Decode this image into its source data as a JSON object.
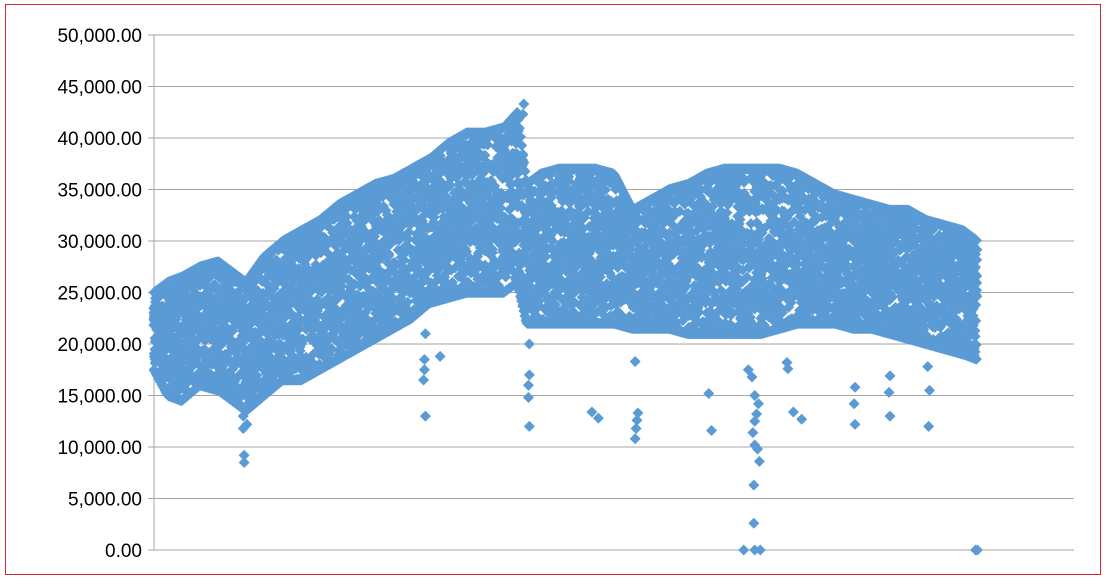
{
  "chart_data": {
    "type": "scatter",
    "title": "",
    "xlabel": "",
    "ylabel": "",
    "ylim": [
      0,
      50000
    ],
    "y_ticks": [
      0,
      5000,
      10000,
      15000,
      20000,
      25000,
      30000,
      35000,
      40000,
      45000,
      50000
    ],
    "y_tick_labels": [
      "0.00",
      "5,000.00",
      "10,000.00",
      "15,000.00",
      "20,000.00",
      "25,000.00",
      "30,000.00",
      "35,000.00",
      "40,000.00",
      "45,000.00",
      "50,000.00"
    ],
    "x_axis_labels_visible": false,
    "xlim": [
      0,
      100
    ],
    "grid": "horizontal",
    "legend": "none",
    "marker": "diamond",
    "series_color": "#5b9bd5",
    "gridline_color": "#a6a6a6",
    "border_color": "#d9262a",
    "envelope": {
      "x": [
        0,
        1.5,
        3,
        5,
        7,
        10,
        12,
        14,
        16,
        18,
        20,
        22,
        24,
        26,
        28,
        30,
        32,
        34,
        36,
        38,
        39.5,
        40.5,
        42,
        44,
        46,
        48,
        50,
        52,
        54,
        56,
        58,
        60,
        62,
        64,
        66,
        68,
        70,
        72,
        74,
        76,
        78,
        80,
        82,
        84,
        86,
        88,
        89.5
      ],
      "y_low": [
        17500,
        15000,
        14500,
        16000,
        15500,
        13500,
        15000,
        16500,
        16500,
        17500,
        18500,
        19500,
        20500,
        21500,
        22500,
        24000,
        24500,
        25000,
        25000,
        25000,
        26000,
        22000,
        22000,
        22000,
        22000,
        22000,
        22000,
        21500,
        21500,
        21500,
        21000,
        21000,
        21000,
        21000,
        21000,
        21500,
        22000,
        22000,
        22000,
        21500,
        21500,
        21000,
        20500,
        20000,
        19500,
        19000,
        18500
      ],
      "y_high": [
        25000,
        26000,
        26500,
        27500,
        28000,
        26000,
        28500,
        30000,
        31000,
        32000,
        33500,
        34500,
        35500,
        36000,
        37000,
        38000,
        39500,
        40500,
        40500,
        41000,
        42500,
        35500,
        36500,
        37000,
        37000,
        37000,
        36500,
        33000,
        34000,
        35000,
        35500,
        36500,
        37000,
        37000,
        37000,
        37000,
        36500,
        35500,
        34500,
        34000,
        33500,
        33000,
        33000,
        32000,
        31500,
        31000,
        30000
      ]
    },
    "outliers": [
      {
        "x": 9.7,
        "y": 13000
      },
      {
        "x": 9.7,
        "y": 11800
      },
      {
        "x": 10.1,
        "y": 12200
      },
      {
        "x": 9.8,
        "y": 9200
      },
      {
        "x": 9.8,
        "y": 8500
      },
      {
        "x": 29.5,
        "y": 21000
      },
      {
        "x": 29.4,
        "y": 18500
      },
      {
        "x": 29.4,
        "y": 17500
      },
      {
        "x": 29.3,
        "y": 16500
      },
      {
        "x": 29.5,
        "y": 13000
      },
      {
        "x": 31.1,
        "y": 18800
      },
      {
        "x": 40.2,
        "y": 43300
      },
      {
        "x": 40.1,
        "y": 42300
      },
      {
        "x": 40.8,
        "y": 20000
      },
      {
        "x": 40.8,
        "y": 17000
      },
      {
        "x": 40.7,
        "y": 16000
      },
      {
        "x": 40.7,
        "y": 14800
      },
      {
        "x": 40.8,
        "y": 12000
      },
      {
        "x": 47.6,
        "y": 13400
      },
      {
        "x": 48.3,
        "y": 12800
      },
      {
        "x": 52.3,
        "y": 18300
      },
      {
        "x": 52.6,
        "y": 13300
      },
      {
        "x": 52.5,
        "y": 12600
      },
      {
        "x": 52.4,
        "y": 11800
      },
      {
        "x": 52.3,
        "y": 10800
      },
      {
        "x": 60.3,
        "y": 15200
      },
      {
        "x": 60.6,
        "y": 11600
      },
      {
        "x": 64.6,
        "y": 17500
      },
      {
        "x": 65.0,
        "y": 16800
      },
      {
        "x": 65.3,
        "y": 15000
      },
      {
        "x": 65.7,
        "y": 14200
      },
      {
        "x": 65.5,
        "y": 13200
      },
      {
        "x": 65.3,
        "y": 12500
      },
      {
        "x": 65.1,
        "y": 11400
      },
      {
        "x": 65.3,
        "y": 10200
      },
      {
        "x": 65.6,
        "y": 9800
      },
      {
        "x": 65.8,
        "y": 8600
      },
      {
        "x": 65.2,
        "y": 6300
      },
      {
        "x": 65.2,
        "y": 2600
      },
      {
        "x": 64.1,
        "y": 0
      },
      {
        "x": 65.3,
        "y": 0
      },
      {
        "x": 65.9,
        "y": 0
      },
      {
        "x": 68.8,
        "y": 18200
      },
      {
        "x": 68.9,
        "y": 17600
      },
      {
        "x": 69.5,
        "y": 13400
      },
      {
        "x": 70.4,
        "y": 12700
      },
      {
        "x": 76.2,
        "y": 15800
      },
      {
        "x": 76.1,
        "y": 14200
      },
      {
        "x": 76.2,
        "y": 12200
      },
      {
        "x": 80.0,
        "y": 16900
      },
      {
        "x": 79.9,
        "y": 15300
      },
      {
        "x": 80.0,
        "y": 13000
      },
      {
        "x": 84.1,
        "y": 17800
      },
      {
        "x": 84.3,
        "y": 15500
      },
      {
        "x": 84.2,
        "y": 12000
      },
      {
        "x": 89.3,
        "y": 0
      },
      {
        "x": 89.5,
        "y": 0
      }
    ]
  }
}
